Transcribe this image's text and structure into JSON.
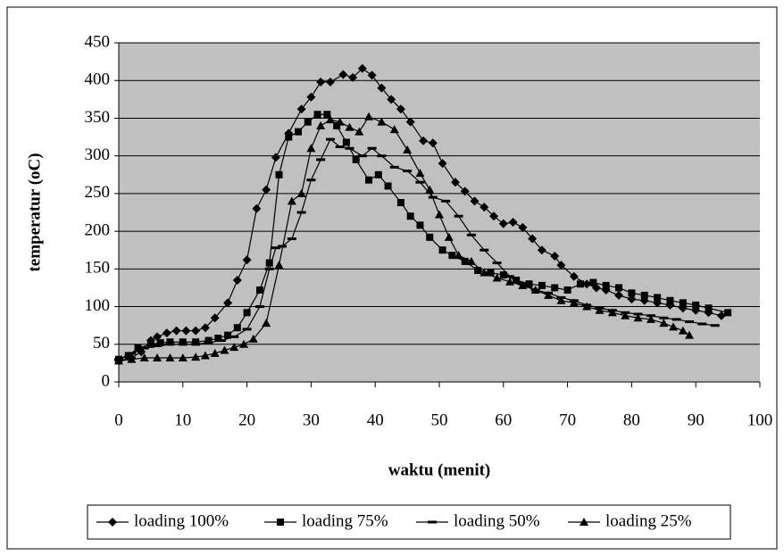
{
  "chart_data": {
    "type": "line",
    "xlabel": "waktu (menit)",
    "ylabel": "temperatur (oC)",
    "xlim": [
      0,
      100
    ],
    "xticks": [
      0,
      10,
      20,
      30,
      40,
      50,
      60,
      70,
      80,
      90,
      100
    ],
    "ylim": [
      0,
      450
    ],
    "yticks": [
      0,
      50,
      100,
      150,
      200,
      250,
      300,
      350,
      400,
      450
    ],
    "grid": true,
    "legend": "bottom",
    "plot_background": "#c0c0c0",
    "series": [
      {
        "name": "loading 100%",
        "color": "#000000",
        "marker": "diamond",
        "x": [
          0,
          2,
          3.5,
          5,
          6,
          7.5,
          9,
          10.5,
          12,
          13.5,
          15,
          17,
          18.5,
          20,
          21.5,
          23,
          24.5,
          26.5,
          28.5,
          30,
          31.5,
          33,
          35,
          36.5,
          38,
          39.5,
          41,
          42.5,
          44,
          45.5,
          47.5,
          49,
          50.5,
          52.5,
          54,
          55.5,
          57,
          58.5,
          60,
          61.5,
          63,
          64.5,
          66,
          68,
          69,
          71,
          73,
          74.5,
          76,
          78,
          80,
          82,
          84,
          86,
          88,
          90,
          92,
          94
        ],
        "values": [
          28,
          32,
          40,
          55,
          60,
          65,
          68,
          68,
          68,
          72,
          85,
          105,
          135,
          162,
          230,
          255,
          298,
          330,
          362,
          378,
          398,
          398,
          408,
          404,
          416,
          407,
          390,
          375,
          362,
          345,
          320,
          317,
          290,
          265,
          253,
          240,
          232,
          220,
          210,
          212,
          205,
          190,
          175,
          167,
          155,
          140,
          130,
          125,
          122,
          115,
          110,
          108,
          105,
          102,
          98,
          95,
          92,
          88
        ]
      },
      {
        "name": "loading 75%",
        "color": "#000000",
        "marker": "square",
        "x": [
          0,
          1.5,
          3,
          5,
          6.5,
          8,
          10,
          12,
          14,
          15.5,
          17,
          18.5,
          20,
          22,
          23.5,
          25,
          26.5,
          28,
          29.5,
          31,
          32.5,
          34,
          35.5,
          37,
          39,
          40.5,
          42,
          44,
          45.5,
          47,
          48.5,
          50.5,
          52,
          54,
          56,
          58,
          60,
          62,
          64,
          66,
          68,
          70,
          72,
          74,
          76,
          78,
          80,
          82,
          84,
          86,
          88,
          90,
          92,
          95
        ],
        "values": [
          30,
          35,
          45,
          50,
          52,
          53,
          53,
          53,
          55,
          58,
          62,
          72,
          92,
          122,
          158,
          275,
          325,
          332,
          345,
          355,
          355,
          340,
          318,
          295,
          268,
          275,
          260,
          238,
          220,
          208,
          192,
          175,
          168,
          160,
          148,
          145,
          142,
          135,
          130,
          128,
          125,
          122,
          130,
          132,
          128,
          125,
          118,
          115,
          112,
          108,
          105,
          102,
          98,
          92
        ]
      },
      {
        "name": "loading 50%",
        "color": "#000000",
        "marker": "dash",
        "x": [
          0,
          2,
          4,
          6,
          8,
          10,
          12,
          14,
          16,
          18,
          20,
          22,
          23.5,
          24.5,
          25.5,
          27,
          28.5,
          30,
          31.5,
          33,
          34.5,
          36,
          38,
          39.5,
          41,
          43,
          45,
          47,
          49,
          51,
          53,
          55,
          57,
          59,
          61,
          63,
          65,
          67,
          69,
          71,
          73,
          75,
          77,
          79,
          81,
          83,
          85,
          87,
          89,
          91,
          93
        ],
        "values": [
          30,
          38,
          45,
          48,
          50,
          50,
          50,
          52,
          55,
          60,
          70,
          100,
          150,
          178,
          180,
          190,
          225,
          268,
          295,
          322,
          312,
          310,
          300,
          310,
          300,
          285,
          280,
          265,
          245,
          240,
          220,
          195,
          175,
          158,
          140,
          130,
          122,
          118,
          112,
          108,
          102,
          98,
          95,
          92,
          90,
          88,
          85,
          83,
          80,
          77,
          75
        ]
      },
      {
        "name": "loading 25%",
        "color": "#000000",
        "marker": "triangle",
        "x": [
          0,
          2,
          4,
          6,
          8,
          10,
          12,
          13.5,
          15,
          16.5,
          18,
          19.5,
          21,
          23,
          25,
          27,
          28.5,
          30,
          31.5,
          33,
          34.5,
          36,
          37.5,
          39,
          41,
          43,
          45,
          47,
          48.5,
          50,
          51.5,
          53,
          55,
          57,
          59,
          61,
          63,
          65,
          67,
          69,
          71,
          73,
          75,
          77,
          79,
          81,
          83,
          85,
          86.5,
          88,
          89
        ],
        "values": [
          28,
          30,
          32,
          32,
          32,
          32,
          33,
          35,
          38,
          42,
          46,
          50,
          57,
          78,
          155,
          240,
          250,
          310,
          340,
          348,
          345,
          338,
          332,
          352,
          345,
          335,
          308,
          277,
          255,
          222,
          192,
          168,
          160,
          145,
          138,
          133,
          128,
          122,
          115,
          108,
          105,
          100,
          95,
          92,
          88,
          85,
          83,
          78,
          73,
          68,
          62
        ]
      }
    ]
  }
}
